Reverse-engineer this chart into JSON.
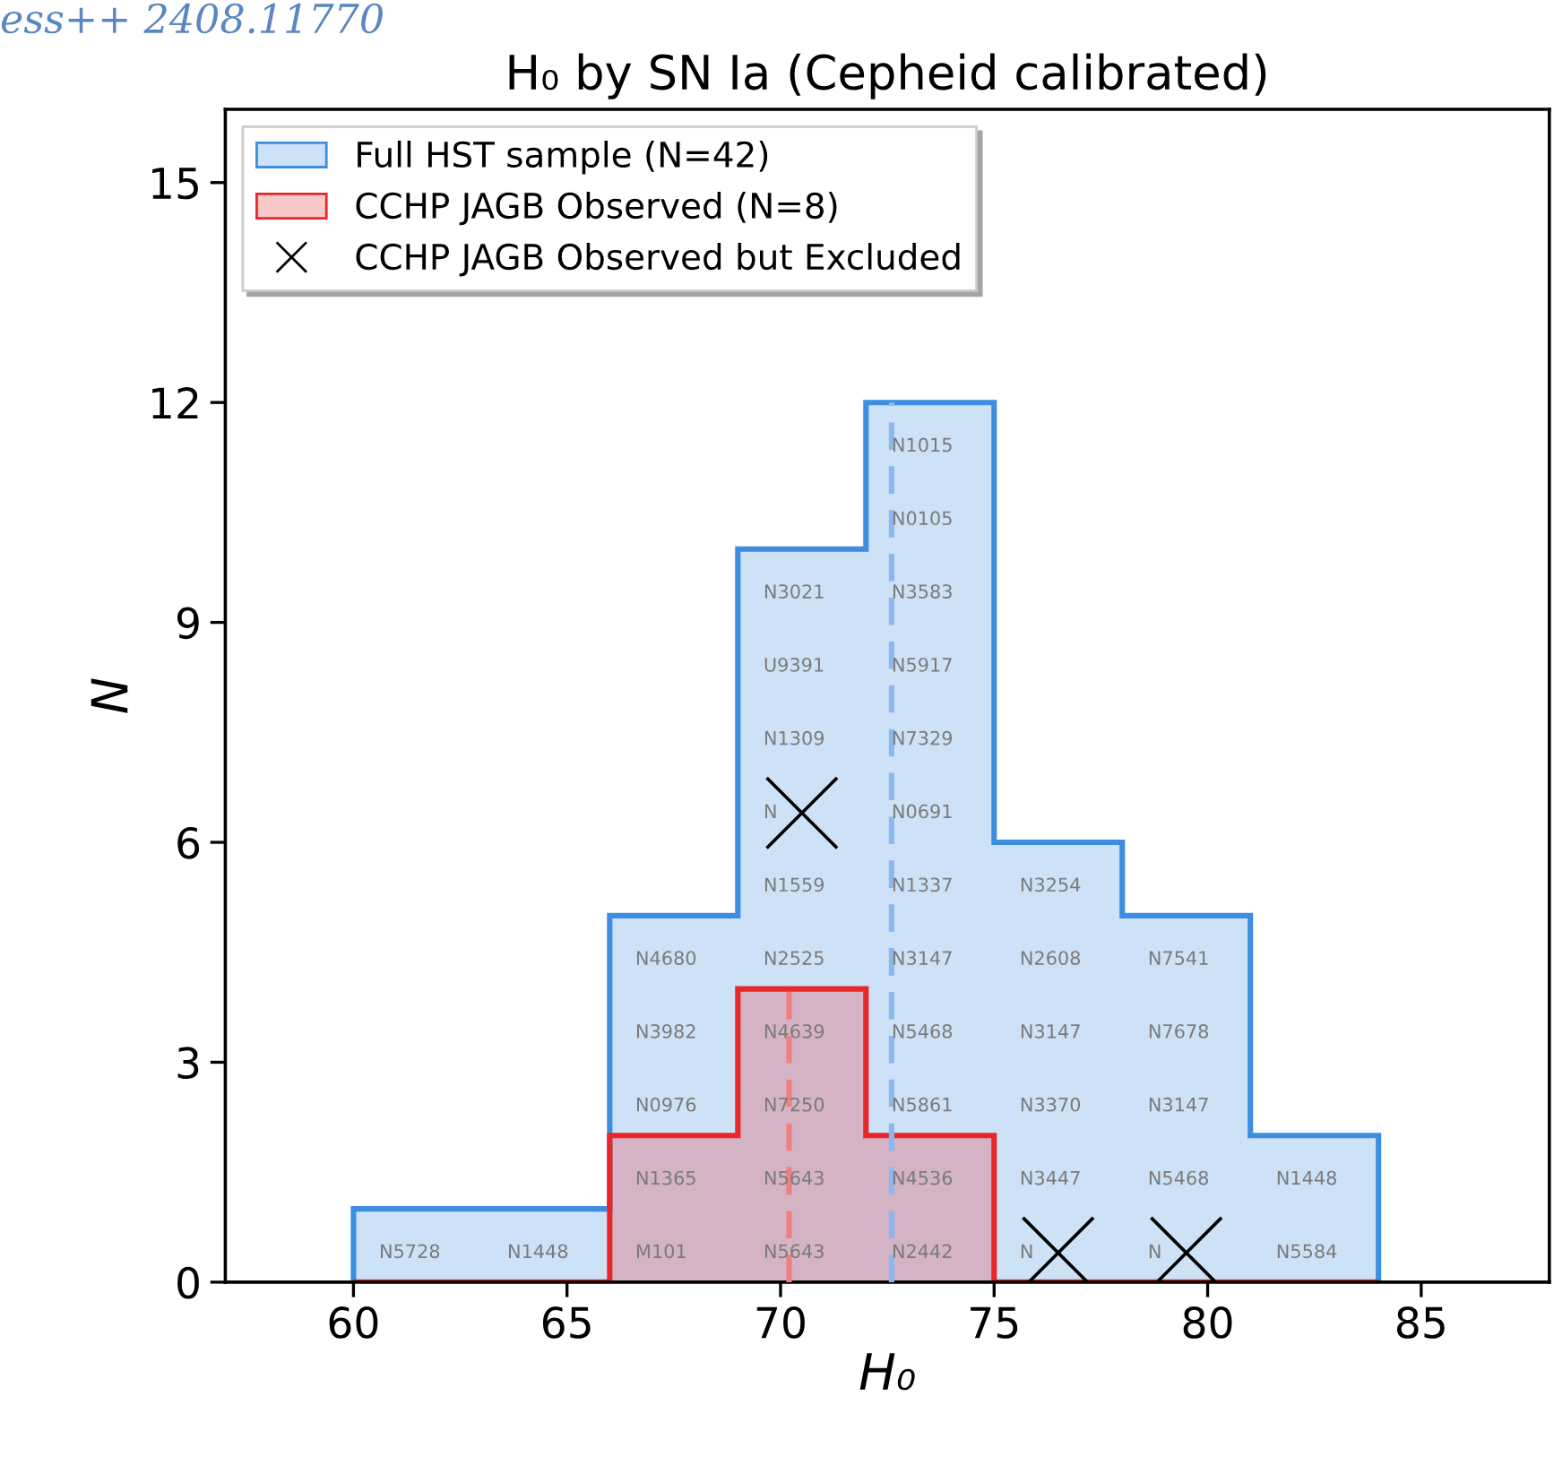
{
  "chart_data": {
    "type": "histogram",
    "title": "H₀ by SN Ia (Cepheid calibrated)",
    "xlabel": "H₀",
    "ylabel": "N",
    "bins": [
      60,
      63,
      66,
      69,
      72,
      75,
      78,
      81,
      84
    ],
    "series": [
      {
        "name": "Full HST sample (N=42)",
        "color": "#3d8de0",
        "values": [
          1,
          1,
          5,
          10,
          12,
          6,
          5,
          2
        ]
      },
      {
        "name": "CCHP JAGB Observed (N=8)",
        "color": "#e8272a",
        "values": [
          0,
          0,
          2,
          4,
          2,
          0,
          0,
          0
        ]
      },
      {
        "type": "scatter",
        "name": "CCHP JAGB Observed but Excluded",
        "color": "#000000",
        "marker": "cross",
        "x": [
          70.5,
          76.5,
          79.5
        ],
        "values": [
          6.4,
          0.4,
          0.4
        ]
      }
    ],
    "ref_lines": [
      {
        "axis": "x",
        "value": 72.6,
        "color": "#8bb8ef",
        "line_style": "dashed"
      },
      {
        "axis": "x",
        "value": 70.2,
        "color": "#f08080",
        "line_style": "dashed"
      }
    ],
    "xlim": [
      57,
      88
    ],
    "ylim": [
      0,
      16
    ],
    "xticks": [
      60,
      65,
      70,
      75,
      80,
      85
    ],
    "yticks": [
      0,
      3,
      6,
      9,
      12,
      15
    ],
    "grid": false,
    "legend": "top left",
    "annotations": [
      "ess++ 2408.11770",
      "N5728",
      "N1448",
      "M101",
      "N1365",
      "N0976",
      "N3982",
      "N4680",
      "N5643",
      "N5643",
      "N7250",
      "N4639",
      "N2525",
      "N1559",
      "N",
      "N1309",
      "U9391",
      "N3021",
      "N2442",
      "N4536",
      "N5861",
      "N5468",
      "N3147",
      "N1337",
      "N0691",
      "N7329",
      "N5917",
      "N3583",
      "N0105",
      "N1015",
      "N",
      "N3447",
      "N3370",
      "N3147",
      "N2608",
      "N3254",
      "N",
      "N5468",
      "N3147",
      "N7678",
      "N7541",
      "N5584",
      "N1448"
    ]
  }
}
